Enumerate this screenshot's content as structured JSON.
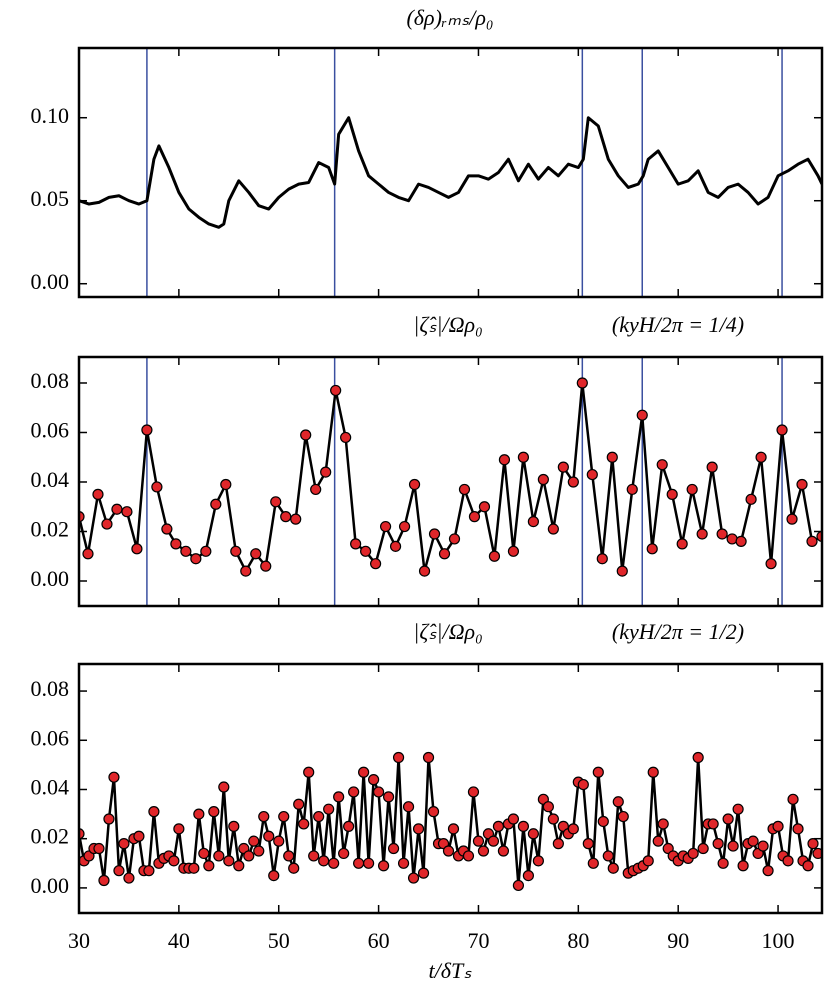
{
  "chart_data": [
    {
      "type": "line",
      "title": "(δρ)ᵣₘₛ/ρ₀",
      "xlim": [
        30,
        104.4
      ],
      "xticks": [
        30,
        40,
        50,
        60,
        70,
        80,
        90,
        100
      ],
      "xtick_labels": false,
      "ylim": [
        -0.008,
        0.142
      ],
      "yticks": [
        {
          "value": 0,
          "label": "0.00"
        },
        {
          "value": 0.05,
          "label": "0.05"
        },
        {
          "value": 0.1,
          "label": "0.10"
        }
      ],
      "vlines": [
        36.8,
        55.6,
        80.4,
        86.4,
        100.4
      ],
      "vline_color": "#3a4fa0",
      "series": [
        {
          "color": "#000000",
          "marker": false,
          "x": [
            30,
            31,
            32,
            33,
            34,
            35,
            36,
            36.8,
            37.5,
            38,
            39,
            40,
            41,
            42,
            43,
            44,
            44.5,
            45,
            46,
            47,
            48,
            49,
            50,
            51,
            52,
            53,
            54,
            55,
            55.6,
            56,
            57,
            58,
            59,
            60,
            61,
            62,
            63,
            64,
            65,
            66,
            67,
            68,
            69,
            70,
            71,
            72,
            73,
            74,
            75,
            76,
            77,
            78,
            79,
            80,
            80.5,
            81,
            82,
            83,
            84,
            85,
            86,
            86.5,
            87,
            88,
            89,
            90,
            91,
            92,
            93,
            94,
            95,
            96,
            97,
            98,
            99,
            100,
            101,
            102,
            103,
            104,
            104.4
          ],
          "values": [
            0.05,
            0.048,
            0.049,
            0.052,
            0.053,
            0.05,
            0.048,
            0.05,
            0.075,
            0.083,
            0.07,
            0.055,
            0.045,
            0.04,
            0.036,
            0.034,
            0.036,
            0.05,
            0.062,
            0.055,
            0.047,
            0.045,
            0.052,
            0.057,
            0.06,
            0.061,
            0.073,
            0.07,
            0.06,
            0.09,
            0.1,
            0.08,
            0.065,
            0.06,
            0.055,
            0.052,
            0.05,
            0.06,
            0.058,
            0.055,
            0.052,
            0.055,
            0.065,
            0.065,
            0.063,
            0.067,
            0.075,
            0.062,
            0.072,
            0.063,
            0.07,
            0.065,
            0.072,
            0.07,
            0.075,
            0.1,
            0.095,
            0.075,
            0.065,
            0.058,
            0.06,
            0.065,
            0.075,
            0.08,
            0.07,
            0.06,
            0.062,
            0.068,
            0.055,
            0.052,
            0.058,
            0.06,
            0.055,
            0.048,
            0.052,
            0.065,
            0.068,
            0.072,
            0.075,
            0.065,
            0.06
          ]
        }
      ]
    },
    {
      "type": "line",
      "title": "|ζ̂ₛ|/Ωρ₀",
      "annotation": "(kyH/2π = 1/4)",
      "xlim": [
        30,
        104.4
      ],
      "xticks": [
        30,
        40,
        50,
        60,
        70,
        80,
        90,
        100
      ],
      "xtick_labels": false,
      "ylim": [
        -0.0101,
        0.0905
      ],
      "yticks": [
        {
          "value": 0,
          "label": "0.00"
        },
        {
          "value": 0.02,
          "label": "0.02"
        },
        {
          "value": 0.04,
          "label": "0.04"
        },
        {
          "value": 0.06,
          "label": "0.06"
        },
        {
          "value": 0.08,
          "label": "0.08"
        }
      ],
      "vlines": [
        36.8,
        55.6,
        80.4,
        86.4,
        100.4
      ],
      "vline_color": "#3a4fa0",
      "series": [
        {
          "color": "#000000",
          "marker": true,
          "marker_color": "#e0262a",
          "x": [
            30.0,
            30.9,
            31.9,
            32.8,
            33.8,
            34.8,
            35.8,
            36.8,
            37.8,
            38.8,
            39.7,
            40.7,
            41.7,
            42.7,
            43.7,
            44.7,
            45.7,
            46.7,
            47.7,
            48.7,
            49.7,
            50.7,
            51.7,
            52.7,
            53.7,
            54.7,
            55.7,
            56.7,
            57.7,
            58.7,
            59.7,
            60.7,
            61.7,
            62.6,
            63.6,
            64.6,
            65.6,
            66.6,
            67.6,
            68.6,
            69.6,
            70.6,
            71.6,
            72.6,
            73.5,
            74.5,
            75.5,
            76.5,
            77.5,
            78.5,
            79.5,
            80.4,
            81.4,
            82.4,
            83.4,
            84.4,
            85.4,
            86.4,
            87.4,
            88.4,
            89.4,
            90.4,
            91.4,
            92.4,
            93.4,
            94.4,
            95.4,
            96.3,
            97.3,
            98.3,
            99.3,
            100.4,
            101.4,
            102.4,
            103.4,
            104.4
          ],
          "values": [
            0.026,
            0.011,
            0.035,
            0.023,
            0.029,
            0.028,
            0.013,
            0.061,
            0.038,
            0.021,
            0.015,
            0.012,
            0.009,
            0.012,
            0.031,
            0.039,
            0.012,
            0.004,
            0.011,
            0.006,
            0.032,
            0.026,
            0.025,
            0.059,
            0.037,
            0.044,
            0.077,
            0.058,
            0.015,
            0.012,
            0.007,
            0.022,
            0.014,
            0.022,
            0.039,
            0.004,
            0.019,
            0.011,
            0.017,
            0.037,
            0.026,
            0.03,
            0.01,
            0.049,
            0.012,
            0.05,
            0.024,
            0.041,
            0.021,
            0.046,
            0.04,
            0.08,
            0.043,
            0.009,
            0.05,
            0.004,
            0.037,
            0.067,
            0.013,
            0.047,
            0.035,
            0.015,
            0.037,
            0.019,
            0.046,
            0.019,
            0.017,
            0.016,
            0.033,
            0.05,
            0.007,
            0.061,
            0.025,
            0.039,
            0.016,
            0.018
          ]
        }
      ]
    },
    {
      "type": "line",
      "title": "|ζ̂ₛ|/Ωρ₀",
      "annotation": "(kyH/2π = 1/2)",
      "xlabel": "t/δTₛ",
      "xlim": [
        30,
        104.4
      ],
      "xticks": [
        30,
        40,
        50,
        60,
        70,
        80,
        90,
        100
      ],
      "xtick_labels": true,
      "ylim": [
        -0.0102,
        0.091
      ],
      "yticks": [
        {
          "value": 0,
          "label": "0.00"
        },
        {
          "value": 0.02,
          "label": "0.02"
        },
        {
          "value": 0.04,
          "label": "0.04"
        },
        {
          "value": 0.06,
          "label": "0.06"
        },
        {
          "value": 0.08,
          "label": "0.08"
        }
      ],
      "series": [
        {
          "color": "#000000",
          "marker": true,
          "marker_color": "#e0262a",
          "x": [
            30,
            30.5,
            31,
            31.5,
            32,
            32.5,
            33,
            33.5,
            34,
            34.5,
            35,
            35.5,
            36,
            36.5,
            37,
            37.5,
            38,
            38.5,
            39,
            39.5,
            40,
            40.5,
            41,
            41.5,
            42,
            42.5,
            43,
            43.5,
            44,
            44.5,
            45,
            45.5,
            46,
            46.5,
            47,
            47.5,
            48,
            48.5,
            49,
            49.5,
            50,
            50.5,
            51,
            51.5,
            52,
            52.5,
            53,
            53.5,
            54,
            54.5,
            55,
            55.5,
            56,
            56.5,
            57,
            57.5,
            58,
            58.5,
            59,
            59.5,
            60,
            60.5,
            61,
            61.5,
            62,
            62.5,
            63,
            63.5,
            64,
            64.5,
            65,
            65.5,
            66,
            66.5,
            67,
            67.5,
            68,
            68.5,
            69,
            69.5,
            70,
            70.5,
            71,
            71.5,
            72,
            72.5,
            73,
            73.5,
            74,
            74.5,
            75,
            75.5,
            76,
            76.5,
            77,
            77.5,
            78,
            78.5,
            79,
            79.5,
            80,
            80.5,
            81,
            81.5,
            82,
            82.5,
            83,
            83.5,
            84,
            84.5,
            85,
            85.5,
            86,
            86.5,
            87,
            87.5,
            88,
            88.5,
            89,
            89.5,
            90,
            90.5,
            91,
            91.5,
            92,
            92.5,
            93,
            93.5,
            94,
            94.5,
            95,
            95.5,
            96,
            96.5,
            97,
            97.5,
            98,
            98.5,
            99,
            99.5,
            100,
            100.5,
            101,
            101.5,
            102,
            102.5,
            103,
            103.5,
            104
          ],
          "values": [
            0.022,
            0.011,
            0.013,
            0.016,
            0.016,
            0.003,
            0.028,
            0.045,
            0.007,
            0.018,
            0.004,
            0.02,
            0.021,
            0.007,
            0.007,
            0.031,
            0.01,
            0.012,
            0.013,
            0.011,
            0.024,
            0.008,
            0.008,
            0.008,
            0.03,
            0.014,
            0.009,
            0.031,
            0.013,
            0.041,
            0.011,
            0.025,
            0.009,
            0.016,
            0.013,
            0.019,
            0.015,
            0.029,
            0.021,
            0.005,
            0.019,
            0.029,
            0.013,
            0.008,
            0.034,
            0.026,
            0.047,
            0.013,
            0.029,
            0.011,
            0.032,
            0.01,
            0.037,
            0.014,
            0.025,
            0.039,
            0.01,
            0.047,
            0.01,
            0.044,
            0.039,
            0.009,
            0.037,
            0.016,
            0.053,
            0.01,
            0.033,
            0.004,
            0.024,
            0.006,
            0.053,
            0.031,
            0.018,
            0.018,
            0.015,
            0.024,
            0.013,
            0.015,
            0.013,
            0.039,
            0.019,
            0.015,
            0.022,
            0.019,
            0.025,
            0.015,
            0.026,
            0.028,
            0.001,
            0.025,
            0.005,
            0.022,
            0.011,
            0.036,
            0.033,
            0.028,
            0.018,
            0.025,
            0.022,
            0.024,
            0.043,
            0.042,
            0.018,
            0.01,
            0.047,
            0.027,
            0.013,
            0.008,
            0.035,
            0.029,
            0.006,
            0.007,
            0.008,
            0.009,
            0.011,
            0.047,
            0.019,
            0.026,
            0.016,
            0.013,
            0.011,
            0.013,
            0.012,
            0.014,
            0.053,
            0.016,
            0.026,
            0.026,
            0.018,
            0.01,
            0.028,
            0.017,
            0.032,
            0.009,
            0.018,
            0.019,
            0.014,
            0.017,
            0.007,
            0.024,
            0.025,
            0.013,
            0.011,
            0.036,
            0.024,
            0.011,
            0.009,
            0.018,
            0.014
          ]
        }
      ]
    }
  ]
}
